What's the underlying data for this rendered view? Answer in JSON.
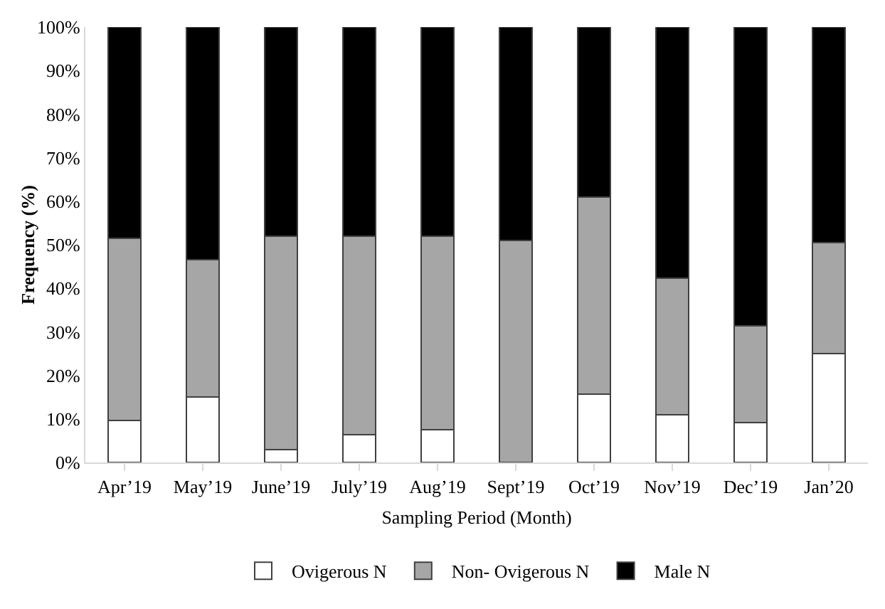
{
  "chart_data": {
    "type": "bar",
    "stacked": true,
    "xlabel": "Sampling Period (Month)",
    "ylabel": "Frequency (%)",
    "categories": [
      "Apr’19",
      "May’19",
      "June’19",
      "July’19",
      "Aug’19",
      "Sept’19",
      "Oct’19",
      "Nov’19",
      "Dec’19",
      "Jan’20"
    ],
    "series": [
      {
        "name": "Ovigerous N",
        "color": "#ffffff",
        "values": [
          9.6,
          15,
          3,
          6.3,
          7.5,
          0,
          15.7,
          11,
          9.2,
          25
        ]
      },
      {
        "name": "Non- Ovigerous N",
        "color": "#a6a6a6",
        "values": [
          41.9,
          31.5,
          49,
          45.7,
          44.5,
          51,
          45.3,
          31.3,
          22.2,
          25.5
        ]
      },
      {
        "name": "Male N",
        "color": "#000000",
        "values": [
          48.5,
          53.5,
          48,
          48,
          48,
          49,
          39,
          57.7,
          68.6,
          49.5
        ]
      }
    ],
    "ylim": [
      0,
      100
    ],
    "yticks": [
      {
        "value": 0,
        "label": "0%"
      },
      {
        "value": 10,
        "label": "10%"
      },
      {
        "value": 20,
        "label": "20%"
      },
      {
        "value": 30,
        "label": "30%"
      },
      {
        "value": 40,
        "label": "40%"
      },
      {
        "value": 50,
        "label": "50%"
      },
      {
        "value": 60,
        "label": "60%"
      },
      {
        "value": 70,
        "label": "70%"
      },
      {
        "value": 80,
        "label": "80%"
      },
      {
        "value": 90,
        "label": "90%"
      },
      {
        "value": 100,
        "label": "100%"
      }
    ],
    "grid": false,
    "legend": "bottom"
  }
}
